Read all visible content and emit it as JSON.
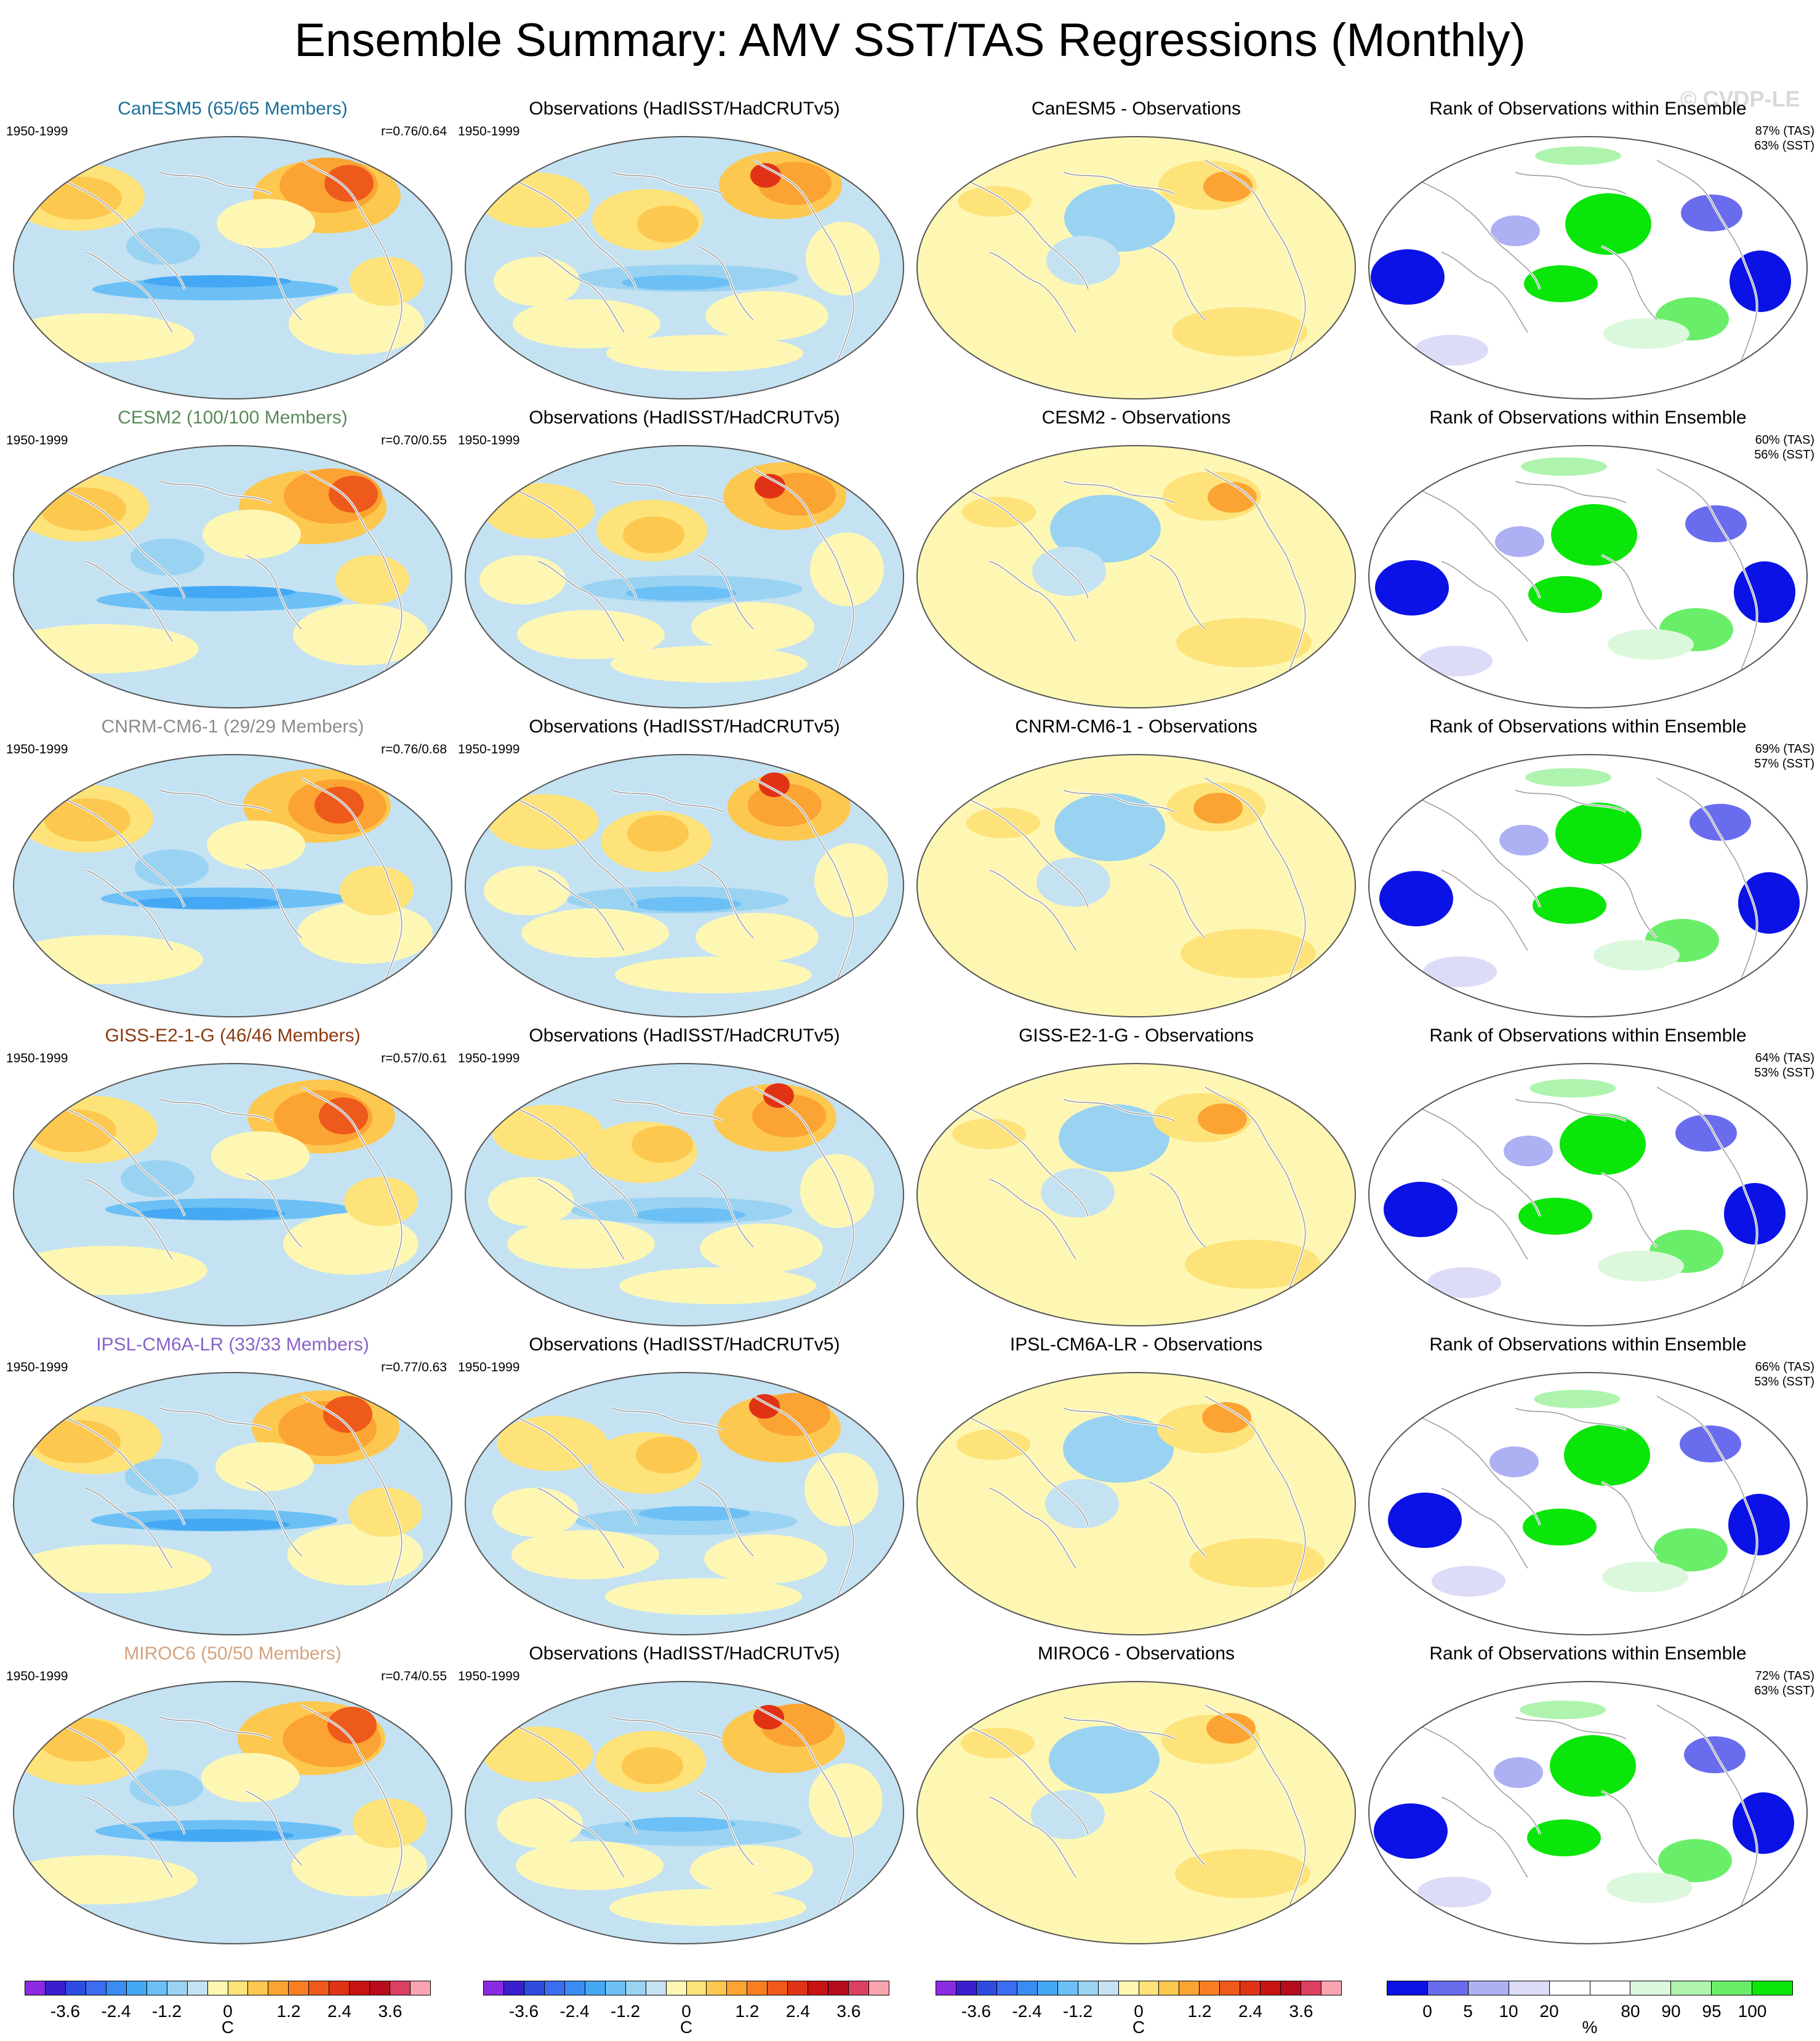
{
  "title": "Ensemble Summary: AMV SST/TAS Regressions (Monthly)",
  "watermark": "© CVDP-LE",
  "obs_title": "Observations (HadISST/HadCRUTv5)",
  "rank_title": "Rank of Observations within Ensemble",
  "period": "1950-1999",
  "rows": [
    {
      "model": "CanESM5 (65/65 Members)",
      "model_color": "#1b6f9a",
      "corr": "r=0.76/0.64",
      "diff": "CanESM5 - Observations",
      "rank_tas": "87% (TAS)",
      "rank_sst": "63% (SST)"
    },
    {
      "model": "CESM2 (100/100 Members)",
      "model_color": "#5a8a5a",
      "corr": "r=0.70/0.55",
      "diff": "CESM2 - Observations",
      "rank_tas": "60% (TAS)",
      "rank_sst": "56% (SST)"
    },
    {
      "model": "CNRM-CM6-1 (29/29 Members)",
      "model_color": "#8c8c8c",
      "corr": "r=0.76/0.68",
      "diff": "CNRM-CM6-1 - Observations",
      "rank_tas": "69% (TAS)",
      "rank_sst": "57% (SST)"
    },
    {
      "model": "GISS-E2-1-G (46/46 Members)",
      "model_color": "#8b3a0f",
      "corr": "r=0.57/0.61",
      "diff": "GISS-E2-1-G - Observations",
      "rank_tas": "64% (TAS)",
      "rank_sst": "53% (SST)"
    },
    {
      "model": "IPSL-CM6A-LR (33/33 Members)",
      "model_color": "#8a62c8",
      "corr": "r=0.77/0.63",
      "diff": "IPSL-CM6A-LR - Observations",
      "rank_tas": "66% (TAS)",
      "rank_sst": "53% (SST)"
    },
    {
      "model": "MIROC6 (50/50 Members)",
      "model_color": "#d4a37f",
      "corr": "r=0.74/0.55",
      "diff": "MIROC6 - Observations",
      "rank_tas": "72% (TAS)",
      "rank_sst": "63% (SST)"
    }
  ],
  "colorbar_temp": {
    "ticks": [
      "-3.6",
      "-2.4",
      "-1.2",
      "0",
      "1.2",
      "2.4",
      "3.6"
    ],
    "unit": "C",
    "colors": [
      "#8a2be2",
      "#3a1fd0",
      "#2e4de0",
      "#3c6cf0",
      "#3a8cf2",
      "#45a8f4",
      "#6cc0f5",
      "#9ad2f2",
      "#c4e2f2",
      "#fef7b4",
      "#fde37a",
      "#fdc84f",
      "#fba433",
      "#f77f22",
      "#ee5a1c",
      "#e03316",
      "#c81313",
      "#b60c1c",
      "#dc4060",
      "#f8a5b0"
    ]
  },
  "colorbar_rank": {
    "ticks": [
      "0",
      "5",
      "10",
      "20",
      "80",
      "90",
      "95",
      "100"
    ],
    "unit": "%",
    "colors": [
      "#0a12e6",
      "#6a6cee",
      "#aeb0f4",
      "#dcdcf8",
      "#ffffff",
      "#ffffff",
      "#dcf8dc",
      "#aef4ae",
      "#6aee6a",
      "#0ae60a"
    ]
  }
}
